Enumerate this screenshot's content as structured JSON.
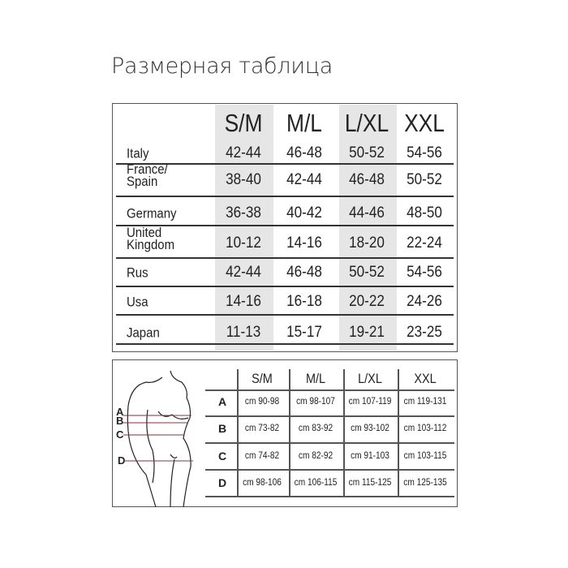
{
  "title": "Размерная таблица",
  "international_table": {
    "sizes": [
      "S/M",
      "M/L",
      "L/XL",
      "XXL"
    ],
    "rows": [
      {
        "country": "Italy",
        "values": [
          "42-44",
          "46-48",
          "50-52",
          "54-56"
        ]
      },
      {
        "country": "France/\nSpain",
        "values": [
          "38-40",
          "42-44",
          "46-48",
          "50-52"
        ]
      },
      {
        "country": "Germany",
        "values": [
          "36-38",
          "40-42",
          "44-46",
          "48-50"
        ]
      },
      {
        "country": "United\nKingdom",
        "values": [
          "10-12",
          "14-16",
          "18-20",
          "22-24"
        ]
      },
      {
        "country": "Rus",
        "values": [
          "42-44",
          "46-48",
          "50-52",
          "54-56"
        ]
      },
      {
        "country": "Usa",
        "values": [
          "14-16",
          "16-18",
          "20-22",
          "24-26"
        ]
      },
      {
        "country": "Japan",
        "values": [
          "11-13",
          "15-17",
          "19-21",
          "23-25"
        ]
      }
    ],
    "shade_color": "#e6e6e6"
  },
  "measurement_table": {
    "sizes": [
      "S/M",
      "M/L",
      "L/XL",
      "XXL"
    ],
    "rows": [
      {
        "label": "A",
        "values": [
          "cm 90-98",
          "cm 98-107",
          "cm 107-119",
          "cm 119-131"
        ]
      },
      {
        "label": "B",
        "values": [
          "cm 73-82",
          "cm 83-92",
          "cm 93-102",
          "cm 103-112"
        ]
      },
      {
        "label": "C",
        "values": [
          "cm 74-82",
          "cm 82-92",
          "cm 91-103",
          "cm 103-115"
        ]
      },
      {
        "label": "D",
        "values": [
          "cm 98-106",
          "cm 106-115",
          "cm 115-125",
          "cm 125-135"
        ]
      }
    ],
    "figure_labels": [
      "A",
      "B",
      "C",
      "D"
    ],
    "marker_color": "#8b2a3a"
  }
}
